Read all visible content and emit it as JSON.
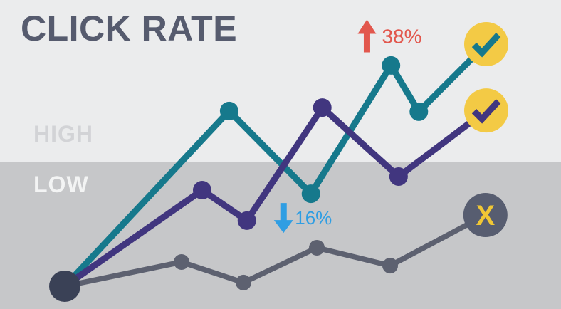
{
  "title": "CLICK RATE",
  "zones": {
    "high_label": "HIGH",
    "low_label": "LOW"
  },
  "colors": {
    "background_high": "#ebeced",
    "background_low": "#c6c7c9",
    "title": "#565b6e",
    "high_label": "#d2d3d6",
    "low_label": "#f3f4f4",
    "series_teal": "#16798c",
    "series_purple": "#41367f",
    "series_gray": "#5d6170",
    "start_dot": "#3a4156",
    "badge_yellow": "#f3ca45",
    "badge_dark": "#575d70",
    "x_glyph": "#f0c735",
    "up_annotation": "#e2574d",
    "down_annotation": "#2f9ee3"
  },
  "chart_data": {
    "type": "line",
    "title": "CLICK RATE",
    "axes_visible": false,
    "y_scale": "relative click-rate level, 0 (start) to 100 (top)",
    "y_zone_labels": [
      "HIGH",
      "LOW"
    ],
    "zone_split_value": 51,
    "start_marker": {
      "x": 0,
      "y": 0,
      "radius": 22,
      "color_key": "start_dot"
    },
    "series": [
      {
        "name": "declining-gray-line",
        "color_key": "series_gray",
        "stroke_width": 7.5,
        "dot_radius": 11,
        "points": [
          [
            0,
            0
          ],
          [
            27.7,
            10.0
          ],
          [
            42.4,
            1.5
          ],
          [
            59.8,
            15.9
          ],
          [
            77.2,
            8.5
          ],
          [
            99.8,
            29.4
          ]
        ],
        "end_badge": {
          "shape": "circle",
          "radius": 31,
          "bg_key": "badge_dark",
          "glyph": "letter",
          "glyph_text": "X",
          "glyph_color_key": "x_glyph"
        }
      },
      {
        "name": "winner-teal-line",
        "color_key": "series_teal",
        "stroke_width": 9,
        "dot_radius": 13,
        "points": [
          [
            0,
            0
          ],
          [
            39.0,
            72.4
          ],
          [
            58.4,
            38.2
          ],
          [
            77.4,
            91.2
          ],
          [
            84.0,
            72.1
          ],
          [
            100,
            100
          ]
        ],
        "end_badge": {
          "shape": "circle",
          "radius": 31,
          "bg_key": "badge_yellow",
          "glyph": "check",
          "glyph_text": "",
          "glyph_color_key": "series_teal"
        }
      },
      {
        "name": "runner-up-purple-line",
        "color_key": "series_purple",
        "stroke_width": 9,
        "dot_radius": 13,
        "points": [
          [
            0,
            0
          ],
          [
            32.6,
            39.7
          ],
          [
            43.2,
            27.1
          ],
          [
            61.1,
            73.8
          ],
          [
            79.2,
            45.3
          ],
          [
            100,
            72.6
          ]
        ],
        "end_badge": {
          "shape": "circle",
          "radius": 31,
          "bg_key": "badge_yellow",
          "glyph": "check",
          "glyph_text": "",
          "glyph_color_key": "series_purple"
        }
      }
    ],
    "annotations": [
      {
        "label": "38%",
        "direction": "up",
        "color_key": "up_annotation",
        "x": 71.7,
        "y": 103.4,
        "arrow_w": 26,
        "arrow_h": 46,
        "head_h": 20,
        "label_offset": [
          21,
          10
        ],
        "font_size": 28
      },
      {
        "label": "16%",
        "direction": "down",
        "color_key": "down_annotation",
        "x": 51.9,
        "y": 28.2,
        "arrow_w": 27,
        "arrow_h": 42,
        "head_h": 18,
        "label_offset": [
          16,
          9
        ],
        "font_size": 26
      }
    ]
  }
}
